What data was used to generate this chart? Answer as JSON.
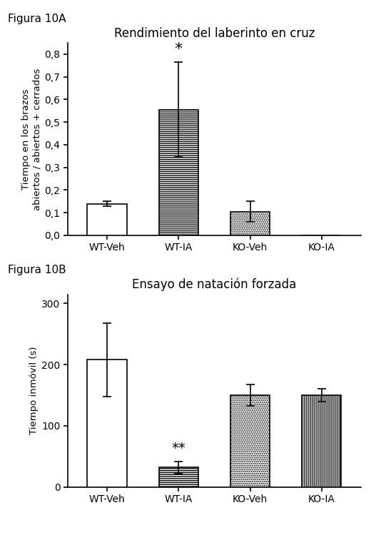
{
  "fig10A": {
    "title": "Rendimiento del laberinto en cruz",
    "ylabel": "Tiempo en los brazos\nabiertos / abiertos + cerrados",
    "categories": [
      "WT-Veh",
      "WT-IA",
      "KO-Veh",
      "KO-IA"
    ],
    "values": [
      0.14,
      0.555,
      0.105,
      0.0
    ],
    "errors": [
      0.01,
      0.21,
      0.045,
      0.0
    ],
    "ylim": [
      0.0,
      0.85
    ],
    "yticks": [
      0.0,
      0.1,
      0.2,
      0.3,
      0.4,
      0.5,
      0.6,
      0.7,
      0.8
    ],
    "ytick_labels": [
      "0,0",
      "0,1",
      "0,2",
      "0,3",
      "0,4",
      "0,5",
      "0,6",
      "0,7",
      "0,8"
    ],
    "significance": [
      "",
      "*",
      "",
      ""
    ],
    "bar_patterns": [
      "",
      "horizontal",
      "dotted",
      "none"
    ],
    "sig_fontsize": 16
  },
  "fig10B": {
    "title": "Ensayo de natación forzada",
    "ylabel": "Tiempo inmóvil (s)",
    "categories": [
      "WT-Veh",
      "WT-IA",
      "KO-Veh",
      "KO-IA"
    ],
    "values": [
      208,
      32,
      150,
      150
    ],
    "errors": [
      60,
      10,
      18,
      10
    ],
    "ylim": [
      0,
      315
    ],
    "yticks": [
      0,
      100,
      200,
      300
    ],
    "ytick_labels": [
      "0",
      "100",
      "200",
      "300"
    ],
    "significance": [
      "",
      "**",
      "",
      ""
    ],
    "bar_patterns": [
      "",
      "horizontal",
      "dotted",
      "vertical"
    ],
    "sig_fontsize": 14
  },
  "figura_labels": [
    "Figura 10A",
    "Figura 10B"
  ],
  "background_color": "#ffffff",
  "bar_width": 0.55,
  "fontsize_title": 12,
  "fontsize_ylabel": 9.5,
  "fontsize_tick": 10,
  "fontsize_fig_label": 11
}
